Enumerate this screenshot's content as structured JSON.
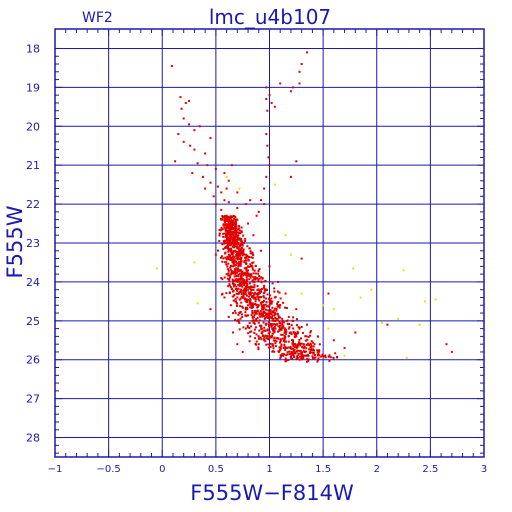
{
  "chart_data": {
    "type": "scatter",
    "title": "lmc_u4b107",
    "subtitle": "WF2",
    "xlabel": "F555W−F814W",
    "ylabel": "F555W",
    "xlim": [
      -1,
      3
    ],
    "ylim": [
      28.5,
      17.5
    ],
    "y_inverted": true,
    "grid": true,
    "x_ticks": [
      -1,
      -0.5,
      0,
      0.5,
      1,
      1.5,
      2,
      2.5,
      3
    ],
    "x_tick_labels": [
      "−1",
      "−0.5",
      "0",
      "0.5",
      "1",
      "1.5",
      "2",
      "2.5",
      "3"
    ],
    "y_ticks": [
      18,
      19,
      20,
      21,
      22,
      23,
      24,
      25,
      26,
      27,
      28
    ],
    "y_tick_labels": [
      "18",
      "19",
      "20",
      "21",
      "22",
      "23",
      "24",
      "25",
      "26",
      "27",
      "28"
    ],
    "colors": {
      "frame": "#1a1ab0",
      "grid": "#1a1ab0",
      "text": "#1a1ab0",
      "primary_points": "#e00000",
      "secondary_points": "#f0e000"
    },
    "series": [
      {
        "color_key": "primary_points",
        "points": [
          [
            0.09,
            18.45
          ],
          [
            0.17,
            19.25
          ],
          [
            0.22,
            19.4
          ],
          [
            0.25,
            19.35
          ],
          [
            0.18,
            19.55
          ],
          [
            0.2,
            19.8
          ],
          [
            0.25,
            19.95
          ],
          [
            0.3,
            20.1
          ],
          [
            0.35,
            20.0
          ],
          [
            0.15,
            20.2
          ],
          [
            0.2,
            20.4
          ],
          [
            0.26,
            20.5
          ],
          [
            0.3,
            20.6
          ],
          [
            0.4,
            20.7
          ],
          [
            0.45,
            20.3
          ],
          [
            0.12,
            20.9
          ],
          [
            0.33,
            20.95
          ],
          [
            0.42,
            21.0
          ],
          [
            0.5,
            21.1
          ],
          [
            0.28,
            21.2
          ],
          [
            0.38,
            21.3
          ],
          [
            0.45,
            21.45
          ],
          [
            0.52,
            21.55
          ],
          [
            0.4,
            21.6
          ],
          [
            0.55,
            21.7
          ],
          [
            0.48,
            21.8
          ],
          [
            0.58,
            21.9
          ],
          [
            0.5,
            22.0
          ],
          [
            0.62,
            21.95
          ],
          [
            0.7,
            21.7
          ],
          [
            0.55,
            22.15
          ],
          [
            0.97,
            19.0
          ],
          [
            0.97,
            19.3
          ],
          [
            0.98,
            19.6
          ],
          [
            1.0,
            19.2
          ],
          [
            1.02,
            19.4
          ],
          [
            1.05,
            19.5
          ],
          [
            1.1,
            18.9
          ],
          [
            1.2,
            19.1
          ],
          [
            1.22,
            19.0
          ],
          [
            1.28,
            18.6
          ],
          [
            1.3,
            18.4
          ],
          [
            1.35,
            18.1
          ],
          [
            1.28,
            18.9
          ],
          [
            0.97,
            20.2
          ],
          [
            0.98,
            20.5
          ],
          [
            0.99,
            20.8
          ],
          [
            1.0,
            21.0
          ],
          [
            0.97,
            21.3
          ],
          [
            0.95,
            21.6
          ],
          [
            0.92,
            21.9
          ],
          [
            0.95,
            22.0
          ],
          [
            0.9,
            22.2
          ],
          [
            1.2,
            21.3
          ],
          [
            1.25,
            20.9
          ],
          [
            0.6,
            22.3
          ],
          [
            0.62,
            22.45
          ],
          [
            0.64,
            22.6
          ],
          [
            0.63,
            22.75
          ],
          [
            0.66,
            22.9
          ],
          [
            0.65,
            23.0
          ],
          [
            0.67,
            23.1
          ],
          [
            0.68,
            23.2
          ],
          [
            0.7,
            23.3
          ],
          [
            0.69,
            23.4
          ],
          [
            0.72,
            23.5
          ],
          [
            0.71,
            23.6
          ],
          [
            0.73,
            23.7
          ],
          [
            0.75,
            23.8
          ],
          [
            0.74,
            23.9
          ],
          [
            0.77,
            24.0
          ],
          [
            0.79,
            24.1
          ],
          [
            0.8,
            24.2
          ],
          [
            0.82,
            24.3
          ],
          [
            0.85,
            24.4
          ],
          [
            0.87,
            24.5
          ],
          [
            0.9,
            24.6
          ],
          [
            0.93,
            24.7
          ],
          [
            0.96,
            24.8
          ],
          [
            1.0,
            24.9
          ],
          [
            1.03,
            25.0
          ],
          [
            1.06,
            25.1
          ],
          [
            1.1,
            25.2
          ],
          [
            1.14,
            25.3
          ],
          [
            1.18,
            25.4
          ],
          [
            1.22,
            25.5
          ],
          [
            1.27,
            25.6
          ],
          [
            1.32,
            25.7
          ],
          [
            1.38,
            25.8
          ],
          [
            1.45,
            25.85
          ],
          [
            1.5,
            25.9
          ],
          [
            0.56,
            22.4
          ],
          [
            0.58,
            22.6
          ],
          [
            0.6,
            22.8
          ],
          [
            0.61,
            23.0
          ],
          [
            0.62,
            23.2
          ],
          [
            0.64,
            23.4
          ],
          [
            0.66,
            23.6
          ],
          [
            0.68,
            23.8
          ],
          [
            0.7,
            24.0
          ],
          [
            0.73,
            24.2
          ],
          [
            0.76,
            24.4
          ],
          [
            0.8,
            24.6
          ],
          [
            0.84,
            24.8
          ],
          [
            0.88,
            25.0
          ],
          [
            0.93,
            25.2
          ],
          [
            0.98,
            25.4
          ],
          [
            1.03,
            25.6
          ],
          [
            1.09,
            25.8
          ],
          [
            0.7,
            22.4
          ],
          [
            0.74,
            22.7
          ],
          [
            0.76,
            23.0
          ],
          [
            0.78,
            23.3
          ],
          [
            0.8,
            23.6
          ],
          [
            0.83,
            23.8
          ],
          [
            0.86,
            24.0
          ],
          [
            0.9,
            24.2
          ],
          [
            0.95,
            24.4
          ],
          [
            1.0,
            24.6
          ],
          [
            1.05,
            24.8
          ],
          [
            1.12,
            25.0
          ],
          [
            1.18,
            25.2
          ],
          [
            1.25,
            25.4
          ],
          [
            1.32,
            25.6
          ],
          [
            1.4,
            25.75
          ],
          [
            0.5,
            23.3
          ],
          [
            0.55,
            23.9
          ],
          [
            0.58,
            24.4
          ],
          [
            0.62,
            24.9
          ],
          [
            0.66,
            25.3
          ],
          [
            0.7,
            25.6
          ],
          [
            0.75,
            25.8
          ],
          [
            0.45,
            24.7
          ],
          [
            0.85,
            22.8
          ],
          [
            0.92,
            23.2
          ],
          [
            1.0,
            23.6
          ],
          [
            1.08,
            24.0
          ],
          [
            1.15,
            24.3
          ],
          [
            1.25,
            24.7
          ],
          [
            1.35,
            25.1
          ],
          [
            1.45,
            25.4
          ],
          [
            1.6,
            25.5
          ],
          [
            1.7,
            25.7
          ],
          [
            1.8,
            25.3
          ],
          [
            2.1,
            25.1
          ],
          [
            2.65,
            25.6
          ],
          [
            2.7,
            25.8
          ],
          [
            1.55,
            24.3
          ],
          [
            1.3,
            23.4
          ],
          [
            0.63,
            23.05
          ],
          [
            0.65,
            23.25
          ],
          [
            0.67,
            23.45
          ],
          [
            0.69,
            23.65
          ],
          [
            0.71,
            23.85
          ],
          [
            0.74,
            24.05
          ],
          [
            0.76,
            24.25
          ],
          [
            0.79,
            24.45
          ],
          [
            0.82,
            24.65
          ],
          [
            0.86,
            24.85
          ],
          [
            0.9,
            25.05
          ],
          [
            0.95,
            25.25
          ],
          [
            1.0,
            25.45
          ],
          [
            1.06,
            25.65
          ],
          [
            1.12,
            25.85
          ],
          [
            1.2,
            25.95
          ],
          [
            1.28,
            26.0
          ],
          [
            1.35,
            26.05
          ],
          [
            0.6,
            21.6
          ],
          [
            0.62,
            21.4
          ],
          [
            0.58,
            21.2
          ],
          [
            0.65,
            21.0
          ],
          [
            0.7,
            22.1
          ],
          [
            0.78,
            22.0
          ],
          [
            0.82,
            21.9
          ],
          [
            0.88,
            22.3
          ],
          [
            0.8,
            22.5
          ],
          [
            0.85,
            23.5
          ],
          [
            0.88,
            23.9
          ],
          [
            0.95,
            24.1
          ],
          [
            1.05,
            24.4
          ],
          [
            1.1,
            24.6
          ],
          [
            1.18,
            24.9
          ],
          [
            1.28,
            25.2
          ],
          [
            1.38,
            25.3
          ],
          [
            1.42,
            25.6
          ],
          [
            0.9,
            25.6
          ],
          [
            0.82,
            25.4
          ],
          [
            0.78,
            25.2
          ],
          [
            0.7,
            25.0
          ],
          [
            0.66,
            24.8
          ],
          [
            0.64,
            24.6
          ]
        ]
      },
      {
        "color_key": "secondary_points",
        "points": [
          [
            -0.05,
            23.65
          ],
          [
            0.3,
            23.5
          ],
          [
            0.33,
            24.55
          ],
          [
            0.6,
            21.3
          ],
          [
            0.72,
            21.6
          ],
          [
            1.05,
            21.5
          ],
          [
            1.15,
            22.8
          ],
          [
            1.2,
            23.3
          ],
          [
            1.3,
            24.3
          ],
          [
            1.5,
            24.6
          ],
          [
            1.6,
            24.7
          ],
          [
            1.78,
            23.65
          ],
          [
            1.85,
            24.4
          ],
          [
            1.95,
            24.2
          ],
          [
            2.05,
            25.05
          ],
          [
            2.2,
            24.95
          ],
          [
            2.25,
            23.7
          ],
          [
            2.4,
            25.1
          ],
          [
            2.45,
            24.5
          ],
          [
            2.55,
            24.45
          ],
          [
            1.35,
            25.5
          ],
          [
            1.45,
            25.85
          ],
          [
            1.55,
            25.2
          ],
          [
            1.7,
            25.9
          ],
          [
            0.95,
            25.4
          ],
          [
            1.25,
            25.75
          ],
          [
            2.28,
            25.95
          ]
        ]
      }
    ]
  }
}
